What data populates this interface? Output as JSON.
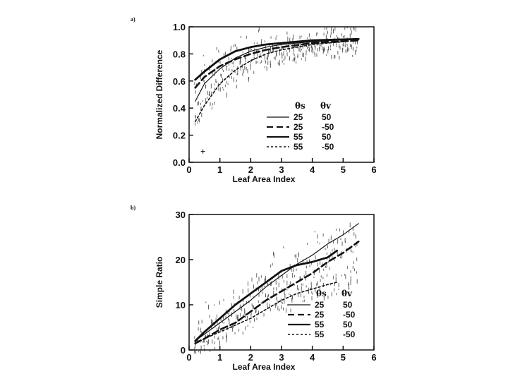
{
  "chart_data": [
    {
      "panel": "a)",
      "type": "line",
      "xlabel": "Leaf Area Index",
      "ylabel": "Normalized Difference",
      "xlim": [
        0,
        6
      ],
      "ylim": [
        0.0,
        1.0
      ],
      "xticks": [
        "0",
        "1",
        "2",
        "3",
        "4",
        "5",
        "6"
      ],
      "yticks": [
        "0.0",
        "0.2",
        "0.4",
        "0.6",
        "0.8",
        "1.0"
      ],
      "grid": false,
      "legend_position": "lower-right",
      "legend_header": [
        "θs",
        "θv"
      ],
      "series": [
        {
          "name": "25   50",
          "style": "thin-solid",
          "x": [
            0.2,
            0.5,
            1.0,
            1.5,
            2.0,
            2.5,
            3.0,
            4.0,
            5.5
          ],
          "y": [
            0.45,
            0.58,
            0.69,
            0.77,
            0.82,
            0.85,
            0.87,
            0.89,
            0.91
          ]
        },
        {
          "name": "25   -50",
          "style": "dashed",
          "x": [
            0.2,
            0.5,
            1.0,
            1.5,
            2.0,
            2.5,
            3.0,
            4.0,
            5.5
          ],
          "y": [
            0.55,
            0.63,
            0.71,
            0.76,
            0.8,
            0.83,
            0.85,
            0.88,
            0.9
          ]
        },
        {
          "name": "55   50",
          "style": "thick-solid",
          "x": [
            0.2,
            0.5,
            1.0,
            1.5,
            2.0,
            2.5,
            3.0,
            4.0,
            5.5
          ],
          "y": [
            0.61,
            0.67,
            0.76,
            0.82,
            0.85,
            0.87,
            0.88,
            0.9,
            0.91
          ]
        },
        {
          "name": "55   -50",
          "style": "dotted",
          "x": [
            0.2,
            0.5,
            1.0,
            1.5,
            2.0,
            2.5,
            3.0,
            4.0,
            5.5
          ],
          "y": [
            0.3,
            0.42,
            0.58,
            0.68,
            0.75,
            0.8,
            0.83,
            0.87,
            0.9
          ]
        }
      ],
      "outlier": {
        "x": 0.45,
        "y": 0.08
      }
    },
    {
      "panel": "b)",
      "type": "line",
      "xlabel": "Leaf Area Index",
      "ylabel": "Simple Ratio",
      "xlim": [
        0,
        6
      ],
      "ylim": [
        0,
        30
      ],
      "xticks": [
        "0",
        "1",
        "2",
        "3",
        "4",
        "5",
        "6"
      ],
      "yticks": [
        "0",
        "10",
        "20",
        "30"
      ],
      "grid": false,
      "legend_position": "lower-right",
      "legend_header": [
        "θs",
        "θv"
      ],
      "series": [
        {
          "name": "25   50",
          "style": "thin-solid",
          "x": [
            0.2,
            0.5,
            1.0,
            1.5,
            2.0,
            2.5,
            3.0,
            3.5,
            4.0,
            4.5,
            5.0,
            5.5
          ],
          "y": [
            2.0,
            3.5,
            6.0,
            8.5,
            11.0,
            14.0,
            16.5,
            19.0,
            21.0,
            23.5,
            25.5,
            28.0
          ]
        },
        {
          "name": "25   -50",
          "style": "dashed",
          "x": [
            0.2,
            0.5,
            1.0,
            1.5,
            2.0,
            2.5,
            3.0,
            3.5,
            4.0,
            4.5,
            5.0,
            5.5
          ],
          "y": [
            1.5,
            2.5,
            4.5,
            6.0,
            8.5,
            11.0,
            13.0,
            15.0,
            17.0,
            19.5,
            21.5,
            24.0
          ]
        },
        {
          "name": "55   50",
          "style": "thick-solid",
          "x": [
            0.2,
            0.5,
            1.0,
            1.5,
            2.0,
            2.5,
            3.0,
            3.5,
            4.0,
            4.5,
            4.8
          ],
          "y": [
            2.0,
            4.0,
            7.0,
            10.0,
            12.5,
            15.0,
            17.5,
            18.8,
            19.5,
            20.5,
            22.0
          ]
        },
        {
          "name": "55   -50",
          "style": "dotted",
          "x": [
            0.2,
            0.5,
            1.0,
            1.5,
            2.0,
            2.5,
            3.0,
            3.5,
            4.0,
            4.5,
            4.8
          ],
          "y": [
            1.5,
            2.5,
            4.0,
            5.5,
            7.0,
            9.0,
            11.0,
            12.5,
            13.5,
            14.5,
            15.0
          ]
        }
      ]
    }
  ]
}
